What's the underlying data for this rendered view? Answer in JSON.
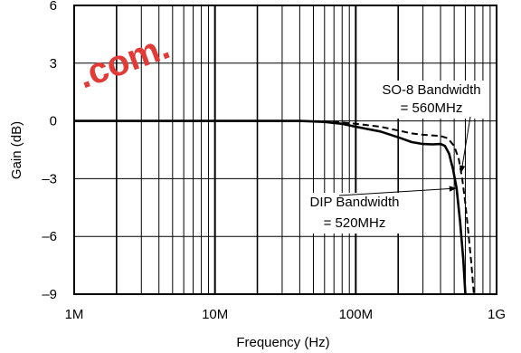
{
  "watermark": {
    "text": ".com.",
    "color": "#e23a36"
  },
  "chart_data": {
    "type": "line",
    "title": "",
    "xlabel": "Frequency (Hz)",
    "ylabel": "Gain (dB)",
    "x_scale": "log",
    "xlim": [
      1000000,
      1000000000
    ],
    "ylim": [
      -9,
      6
    ],
    "x_ticks": [
      {
        "value": 1000000,
        "label": "1M"
      },
      {
        "value": 10000000,
        "label": "10M"
      },
      {
        "value": 100000000,
        "label": "100M"
      },
      {
        "value": 1000000000,
        "label": "1G"
      }
    ],
    "y_ticks": [
      {
        "value": 6,
        "label": "6"
      },
      {
        "value": 3,
        "label": "3"
      },
      {
        "value": 0,
        "label": "0"
      },
      {
        "value": -3,
        "label": "–3"
      },
      {
        "value": -6,
        "label": "–6"
      },
      {
        "value": -9,
        "label": "–9"
      }
    ],
    "grid": true,
    "series": [
      {
        "style": "solid",
        "color": "#000000",
        "points": [
          [
            1000000,
            0
          ],
          [
            10000000,
            0
          ],
          [
            40000000,
            0
          ],
          [
            60000000,
            -0.05
          ],
          [
            80000000,
            -0.15
          ],
          [
            100000000,
            -0.3
          ],
          [
            150000000,
            -0.55
          ],
          [
            200000000,
            -0.85
          ],
          [
            250000000,
            -1.1
          ],
          [
            300000000,
            -1.2
          ],
          [
            350000000,
            -1.22
          ],
          [
            400000000,
            -1.2
          ],
          [
            430000000,
            -1.3
          ],
          [
            460000000,
            -1.7
          ],
          [
            490000000,
            -2.5
          ],
          [
            520000000,
            -3.5
          ],
          [
            550000000,
            -5.2
          ],
          [
            580000000,
            -7.2
          ],
          [
            600000000,
            -9
          ]
        ]
      },
      {
        "style": "dashed",
        "color": "#000000",
        "points": [
          [
            1000000,
            0
          ],
          [
            10000000,
            0
          ],
          [
            40000000,
            0
          ],
          [
            60000000,
            -0.02
          ],
          [
            80000000,
            -0.08
          ],
          [
            100000000,
            -0.15
          ],
          [
            150000000,
            -0.3
          ],
          [
            200000000,
            -0.5
          ],
          [
            250000000,
            -0.65
          ],
          [
            300000000,
            -0.72
          ],
          [
            350000000,
            -0.75
          ],
          [
            400000000,
            -0.78
          ],
          [
            450000000,
            -0.9
          ],
          [
            500000000,
            -1.3
          ],
          [
            540000000,
            -2.0
          ],
          [
            570000000,
            -3.0
          ],
          [
            600000000,
            -4.3
          ],
          [
            630000000,
            -5.8
          ],
          [
            660000000,
            -7.3
          ],
          [
            690000000,
            -9
          ]
        ]
      }
    ],
    "annotations": [
      {
        "id": "so8",
        "lines": [
          "SO-8 Bandwidth",
          "= 560MHz"
        ],
        "target": [
          560000000,
          -2.7
        ]
      },
      {
        "id": "dip",
        "lines": [
          "DIP Bandwidth",
          "= 520MHz"
        ],
        "target": [
          520000000,
          -3.5
        ]
      }
    ]
  }
}
